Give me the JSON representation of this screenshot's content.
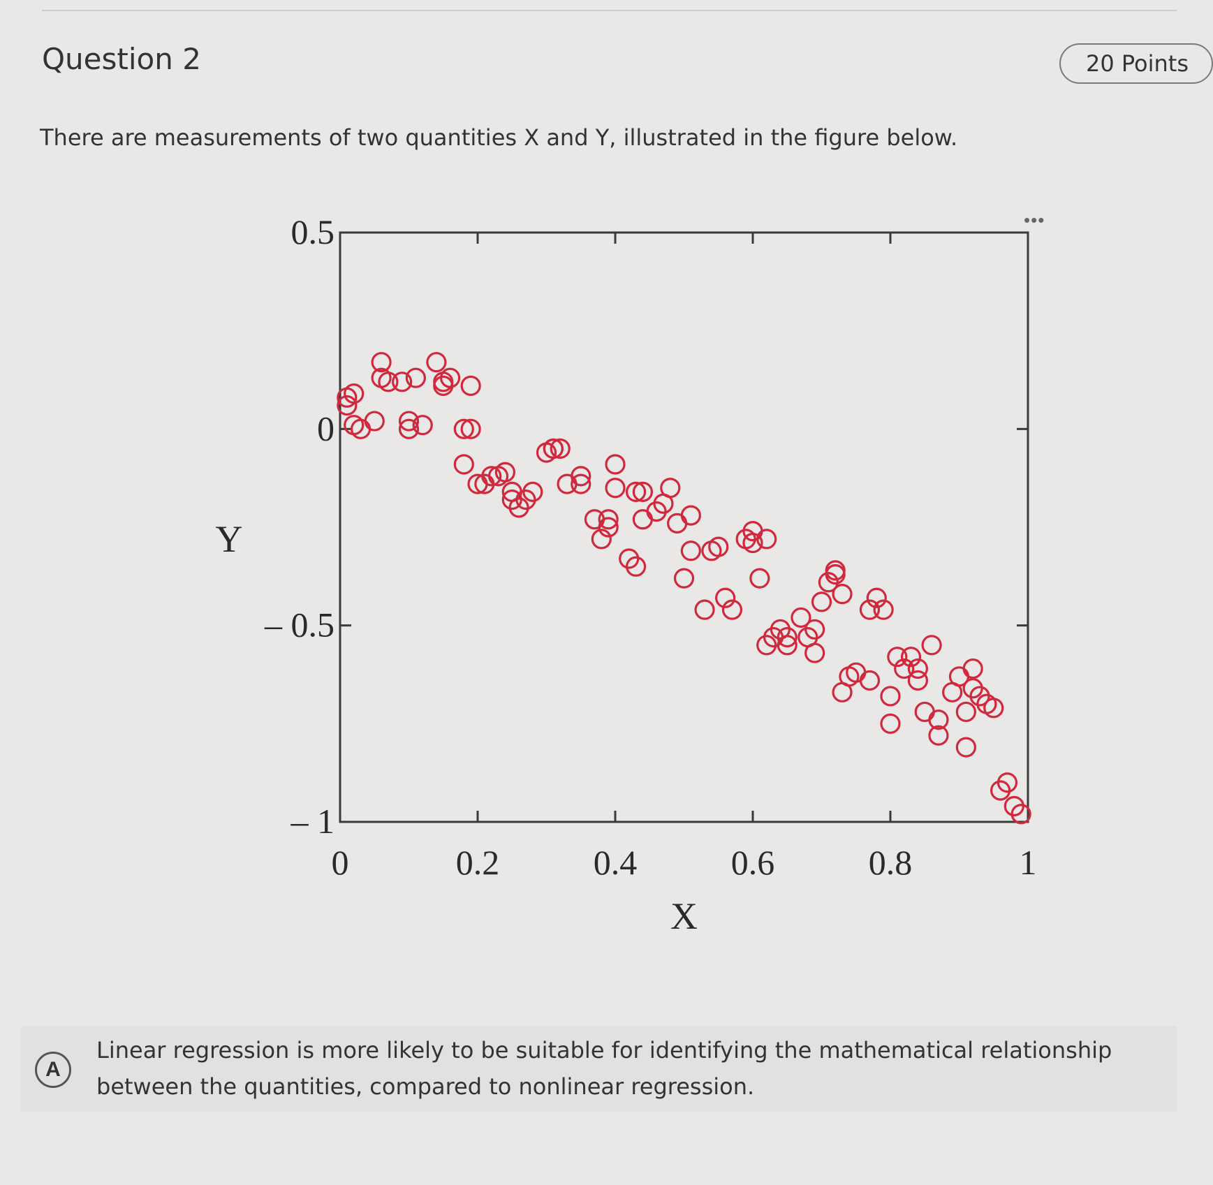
{
  "question": {
    "title": "Question 2",
    "points": "20 Points",
    "prompt": "There are measurements of two quantities X and Y, illustrated in the figure below."
  },
  "figure": {
    "more_icon": "more-horizontal-icon",
    "marker_color": "#d0283c"
  },
  "chart_data": {
    "type": "scatter",
    "title": "",
    "xlabel": "X",
    "ylabel": "Y",
    "xlim": [
      0,
      1
    ],
    "ylim": [
      -1,
      0.5
    ],
    "xticks": [
      "0",
      "0.2",
      "0.4",
      "0.6",
      "0.8",
      "1"
    ],
    "yticks": [
      "0.5",
      "0",
      "– 0.5",
      "– 1"
    ],
    "xtick_values": [
      0,
      0.2,
      0.4,
      0.6,
      0.8,
      1
    ],
    "ytick_values": [
      0.5,
      0,
      -0.5,
      -1
    ],
    "grid": false,
    "marker": "open-circle",
    "series": [
      {
        "x": [
          0.01,
          0.01,
          0.02,
          0.02,
          0.03,
          0.05,
          0.06,
          0.06,
          0.07,
          0.09,
          0.1,
          0.1,
          0.11,
          0.12,
          0.14,
          0.15,
          0.15,
          0.16,
          0.18,
          0.18,
          0.19,
          0.19,
          0.2,
          0.21,
          0.22,
          0.23,
          0.24,
          0.25,
          0.25,
          0.26,
          0.27,
          0.28,
          0.3,
          0.31,
          0.31,
          0.32,
          0.33,
          0.35,
          0.35,
          0.37,
          0.38,
          0.39,
          0.39,
          0.4,
          0.4,
          0.42,
          0.43,
          0.43,
          0.44,
          0.44,
          0.46,
          0.47,
          0.48,
          0.49,
          0.5,
          0.51,
          0.51,
          0.53,
          0.54,
          0.55,
          0.56,
          0.57,
          0.59,
          0.6,
          0.6,
          0.61,
          0.62,
          0.62,
          0.63,
          0.64,
          0.65,
          0.65,
          0.67,
          0.68,
          0.69,
          0.69,
          0.7,
          0.71,
          0.72,
          0.72,
          0.73,
          0.73,
          0.74,
          0.75,
          0.77,
          0.77,
          0.78,
          0.79,
          0.8,
          0.8,
          0.81,
          0.82,
          0.83,
          0.84,
          0.84,
          0.85,
          0.86,
          0.87,
          0.87,
          0.89,
          0.9,
          0.91,
          0.91,
          0.92,
          0.92,
          0.93,
          0.94,
          0.95,
          0.96,
          0.97,
          0.98,
          0.99
        ],
        "y": [
          0.08,
          0.06,
          0.09,
          0.01,
          0.0,
          0.02,
          0.17,
          0.13,
          0.12,
          0.12,
          0.02,
          0.0,
          0.13,
          0.01,
          0.17,
          0.11,
          0.12,
          0.13,
          0.0,
          -0.09,
          0.11,
          0.0,
          -0.14,
          -0.14,
          -0.12,
          -0.12,
          -0.11,
          -0.16,
          -0.18,
          -0.2,
          -0.18,
          -0.16,
          -0.06,
          -0.05,
          -0.05,
          -0.05,
          -0.14,
          -0.12,
          -0.14,
          -0.23,
          -0.28,
          -0.23,
          -0.25,
          -0.09,
          -0.15,
          -0.33,
          -0.35,
          -0.16,
          -0.16,
          -0.23,
          -0.21,
          -0.19,
          -0.15,
          -0.24,
          -0.38,
          -0.22,
          -0.31,
          -0.46,
          -0.31,
          -0.3,
          -0.43,
          -0.46,
          -0.28,
          -0.29,
          -0.26,
          -0.38,
          -0.28,
          -0.55,
          -0.53,
          -0.51,
          -0.53,
          -0.55,
          -0.48,
          -0.53,
          -0.51,
          -0.57,
          -0.44,
          -0.39,
          -0.36,
          -0.37,
          -0.42,
          -0.67,
          -0.63,
          -0.62,
          -0.64,
          -0.46,
          -0.43,
          -0.46,
          -0.75,
          -0.68,
          -0.58,
          -0.61,
          -0.58,
          -0.64,
          -0.61,
          -0.72,
          -0.55,
          -0.74,
          -0.78,
          -0.67,
          -0.63,
          -0.81,
          -0.72,
          -0.61,
          -0.66,
          -0.68,
          -0.7,
          -0.71,
          -0.92,
          -0.9,
          -0.96,
          -0.98
        ]
      }
    ]
  },
  "options": [
    {
      "letter": "A",
      "text": "Linear regression is more likely to be suitable for identifying the mathematical relationship between the quantities, compared to nonlinear regression."
    }
  ]
}
